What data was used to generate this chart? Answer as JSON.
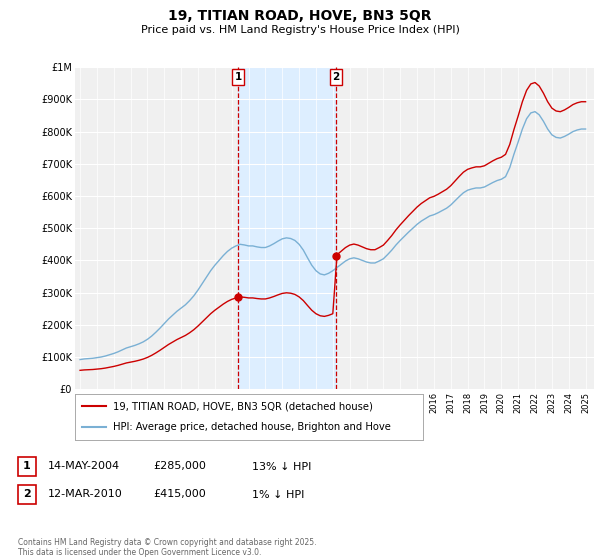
{
  "title": "19, TITIAN ROAD, HOVE, BN3 5QR",
  "subtitle": "Price paid vs. HM Land Registry's House Price Index (HPI)",
  "footer": "Contains HM Land Registry data © Crown copyright and database right 2025.\nThis data is licensed under the Open Government Licence v3.0.",
  "legend_line1": "19, TITIAN ROAD, HOVE, BN3 5QR (detached house)",
  "legend_line2": "HPI: Average price, detached house, Brighton and Hove",
  "purchase1_date": "14-MAY-2004",
  "purchase1_price": "£285,000",
  "purchase1_hpi": "13% ↓ HPI",
  "purchase2_date": "12-MAR-2010",
  "purchase2_price": "£415,000",
  "purchase2_hpi": "1% ↓ HPI",
  "vline1_x": 2004.37,
  "vline2_x": 2010.19,
  "shade_color": "#ddeeff",
  "vline_color": "#cc0000",
  "hpi_color": "#7ab0d4",
  "price_color": "#cc0000",
  "dot_color": "#cc0000",
  "ylim": [
    0,
    1000000
  ],
  "xlim": [
    1994.7,
    2025.5
  ],
  "background_color": "#ffffff",
  "plot_bg_color": "#f0f0f0",
  "yticks": [
    0,
    100000,
    200000,
    300000,
    400000,
    500000,
    600000,
    700000,
    800000,
    900000,
    1000000
  ],
  "ytick_labels": [
    "£0",
    "£100K",
    "£200K",
    "£300K",
    "£400K",
    "£500K",
    "£600K",
    "£700K",
    "£800K",
    "£900K",
    "£1M"
  ],
  "xticks": [
    1995,
    1996,
    1997,
    1998,
    1999,
    2000,
    2001,
    2002,
    2003,
    2004,
    2005,
    2006,
    2007,
    2008,
    2009,
    2010,
    2011,
    2012,
    2013,
    2014,
    2015,
    2016,
    2017,
    2018,
    2019,
    2020,
    2021,
    2022,
    2023,
    2024,
    2025
  ]
}
